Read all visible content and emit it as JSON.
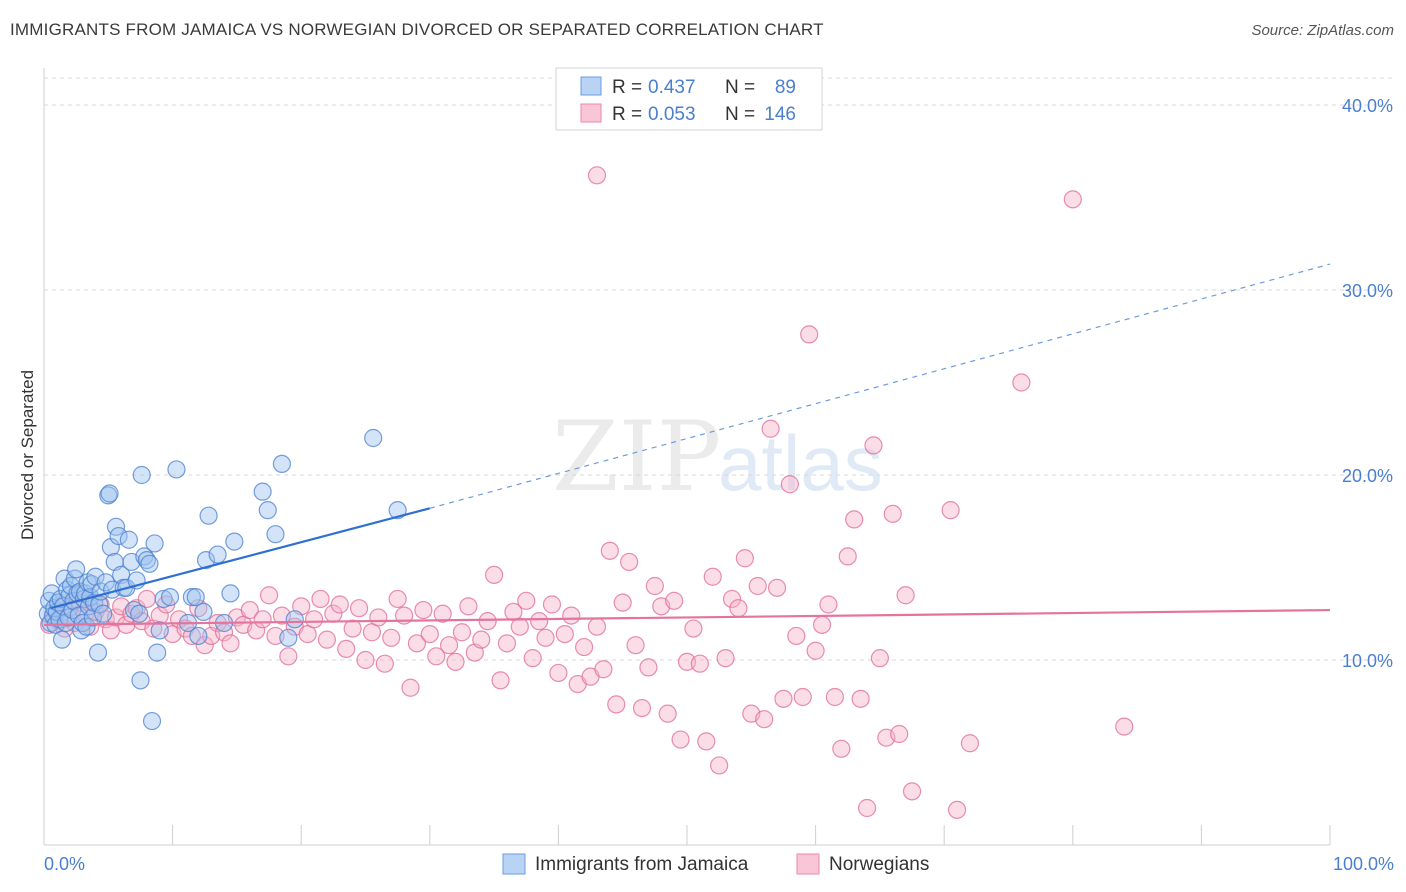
{
  "title": "IMMIGRANTS FROM JAMAICA VS NORWEGIAN DIVORCED OR SEPARATED CORRELATION CHART",
  "source": "Source: ZipAtlas.com",
  "watermark": {
    "zip": "ZIP",
    "atlas": "atlas"
  },
  "colors": {
    "blue": "#4a7fd0",
    "blue_fill": "#9ec3ef",
    "pink": "#e06a95",
    "pink_fill": "#f5b3c8",
    "grid": "#d8d8d8"
  },
  "legend": {
    "r_label": "R =",
    "n_label": "N =",
    "rows": [
      {
        "r": "0.437",
        "n": "89",
        "color": "blue"
      },
      {
        "r": "0.053",
        "n": "146",
        "color": "pink"
      }
    ]
  },
  "chart_data": {
    "type": "scatter",
    "ylabel": "Divorced or Separated",
    "xlabel": "",
    "xlim": [
      0,
      100
    ],
    "ylim": [
      0,
      42
    ],
    "x_tick_labels": [
      "0.0%",
      "100.0%"
    ],
    "y_ticks": [
      10,
      20,
      30,
      40
    ],
    "y_tick_labels": [
      "10.0%",
      "20.0%",
      "30.0%",
      "40.0%"
    ],
    "grid": "horizontal dashed",
    "legend_position": "top-center",
    "series": [
      {
        "name": "Immigrants from Jamaica",
        "color": "blue",
        "trend": {
          "x0": 0.5,
          "y0": 12.8,
          "x1": 30,
          "y1": 18.2,
          "dashed_to_x": 100,
          "dashed_to_y": 31.4
        },
        "points": [
          [
            0.3,
            12.5
          ],
          [
            0.4,
            13.2
          ],
          [
            0.5,
            12.0
          ],
          [
            0.6,
            13.6
          ],
          [
            0.7,
            12.4
          ],
          [
            0.8,
            12.8
          ],
          [
            0.9,
            11.9
          ],
          [
            1.0,
            12.6
          ],
          [
            1.1,
            13.1
          ],
          [
            1.2,
            12.2
          ],
          [
            1.3,
            13.3
          ],
          [
            1.4,
            11.1
          ],
          [
            1.5,
            12.9
          ],
          [
            1.6,
            14.4
          ],
          [
            1.7,
            12.0
          ],
          [
            1.8,
            13.8
          ],
          [
            1.9,
            12.3
          ],
          [
            2.0,
            13.5
          ],
          [
            2.1,
            14.0
          ],
          [
            2.2,
            12.7
          ],
          [
            2.3,
            13.2
          ],
          [
            2.4,
            14.4
          ],
          [
            2.5,
            14.9
          ],
          [
            2.6,
            13.6
          ],
          [
            2.7,
            12.4
          ],
          [
            2.8,
            13.7
          ],
          [
            2.9,
            11.6
          ],
          [
            3.0,
            12.0
          ],
          [
            3.1,
            13.3
          ],
          [
            3.2,
            13.6
          ],
          [
            3.3,
            11.8
          ],
          [
            3.4,
            14.2
          ],
          [
            3.5,
            12.9
          ],
          [
            3.6,
            13.4
          ],
          [
            3.7,
            14.1
          ],
          [
            3.8,
            12.3
          ],
          [
            3.9,
            13.1
          ],
          [
            4.0,
            14.5
          ],
          [
            4.2,
            10.4
          ],
          [
            4.3,
            13.0
          ],
          [
            4.4,
            13.7
          ],
          [
            4.6,
            12.5
          ],
          [
            4.8,
            14.2
          ],
          [
            5.0,
            18.9
          ],
          [
            5.1,
            19.0
          ],
          [
            5.2,
            16.1
          ],
          [
            5.3,
            13.8
          ],
          [
            5.5,
            15.3
          ],
          [
            5.6,
            17.2
          ],
          [
            5.8,
            16.7
          ],
          [
            6.0,
            14.6
          ],
          [
            6.2,
            13.9
          ],
          [
            6.4,
            13.9
          ],
          [
            6.6,
            16.5
          ],
          [
            6.8,
            15.3
          ],
          [
            7.0,
            12.7
          ],
          [
            7.2,
            14.3
          ],
          [
            7.4,
            12.5
          ],
          [
            7.5,
            8.9
          ],
          [
            7.6,
            20.0
          ],
          [
            7.8,
            15.6
          ],
          [
            8.0,
            15.4
          ],
          [
            8.2,
            15.2
          ],
          [
            8.4,
            6.7
          ],
          [
            8.6,
            16.3
          ],
          [
            8.8,
            10.4
          ],
          [
            9.0,
            11.6
          ],
          [
            9.3,
            13.3
          ],
          [
            9.8,
            13.4
          ],
          [
            10.3,
            20.3
          ],
          [
            11.2,
            12.0
          ],
          [
            11.5,
            13.4
          ],
          [
            11.8,
            13.4
          ],
          [
            12.0,
            11.3
          ],
          [
            12.4,
            12.6
          ],
          [
            12.6,
            15.4
          ],
          [
            12.8,
            17.8
          ],
          [
            13.5,
            15.7
          ],
          [
            14.0,
            12.0
          ],
          [
            14.5,
            13.6
          ],
          [
            14.8,
            16.4
          ],
          [
            17.0,
            19.1
          ],
          [
            17.4,
            18.1
          ],
          [
            18.0,
            16.8
          ],
          [
            18.5,
            20.6
          ],
          [
            19.0,
            11.2
          ],
          [
            25.6,
            22.0
          ],
          [
            27.5,
            18.1
          ],
          [
            19.5,
            12.2
          ]
        ]
      },
      {
        "name": "Norwegians",
        "color": "pink",
        "trend": {
          "x0": 0,
          "y0": 11.9,
          "x1": 100,
          "y1": 12.7
        },
        "points": [
          [
            0.4,
            11.9
          ],
          [
            0.8,
            12.4
          ],
          [
            1.2,
            12.1
          ],
          [
            1.6,
            11.7
          ],
          [
            2.0,
            12.8
          ],
          [
            2.4,
            12.0
          ],
          [
            2.8,
            13.1
          ],
          [
            3.2,
            12.5
          ],
          [
            3.6,
            11.8
          ],
          [
            4.0,
            12.6
          ],
          [
            4.4,
            13.0
          ],
          [
            4.8,
            12.2
          ],
          [
            5.2,
            11.6
          ],
          [
            5.6,
            12.3
          ],
          [
            6.0,
            12.9
          ],
          [
            6.4,
            11.9
          ],
          [
            6.8,
            12.5
          ],
          [
            7.2,
            12.8
          ],
          [
            7.6,
            12.1
          ],
          [
            8.0,
            13.3
          ],
          [
            8.5,
            11.7
          ],
          [
            9.0,
            12.4
          ],
          [
            9.5,
            13.0
          ],
          [
            10.0,
            11.4
          ],
          [
            10.5,
            12.2
          ],
          [
            11.0,
            11.7
          ],
          [
            11.5,
            11.3
          ],
          [
            12.0,
            12.8
          ],
          [
            12.5,
            10.8
          ],
          [
            13.0,
            11.3
          ],
          [
            13.5,
            12.0
          ],
          [
            14.0,
            11.5
          ],
          [
            14.5,
            10.9
          ],
          [
            15.0,
            12.3
          ],
          [
            15.5,
            11.9
          ],
          [
            16.0,
            12.7
          ],
          [
            16.5,
            11.6
          ],
          [
            17.0,
            12.2
          ],
          [
            17.5,
            13.5
          ],
          [
            18.0,
            11.3
          ],
          [
            18.5,
            12.4
          ],
          [
            19.0,
            10.2
          ],
          [
            19.5,
            11.8
          ],
          [
            20.0,
            12.9
          ],
          [
            20.5,
            11.4
          ],
          [
            21.0,
            12.2
          ],
          [
            21.5,
            13.3
          ],
          [
            22.0,
            11.1
          ],
          [
            22.5,
            12.5
          ],
          [
            23.0,
            13.0
          ],
          [
            23.5,
            10.6
          ],
          [
            24.0,
            11.7
          ],
          [
            24.5,
            12.8
          ],
          [
            25.0,
            10.0
          ],
          [
            25.5,
            11.5
          ],
          [
            26.0,
            12.3
          ],
          [
            26.5,
            9.8
          ],
          [
            27.0,
            11.2
          ],
          [
            27.5,
            13.3
          ],
          [
            28.0,
            12.4
          ],
          [
            28.5,
            8.5
          ],
          [
            29.0,
            10.9
          ],
          [
            29.5,
            12.7
          ],
          [
            30.0,
            11.4
          ],
          [
            30.5,
            10.2
          ],
          [
            31.0,
            12.5
          ],
          [
            31.5,
            10.8
          ],
          [
            32.0,
            9.9
          ],
          [
            32.5,
            11.5
          ],
          [
            33.0,
            12.9
          ],
          [
            33.5,
            10.4
          ],
          [
            34.0,
            11.1
          ],
          [
            34.5,
            12.1
          ],
          [
            35.0,
            14.6
          ],
          [
            35.5,
            8.9
          ],
          [
            36.0,
            10.9
          ],
          [
            36.5,
            12.6
          ],
          [
            37.0,
            11.8
          ],
          [
            37.5,
            13.2
          ],
          [
            38.0,
            10.1
          ],
          [
            38.5,
            12.1
          ],
          [
            39.0,
            11.2
          ],
          [
            39.5,
            13.0
          ],
          [
            40.0,
            9.3
          ],
          [
            40.5,
            11.4
          ],
          [
            41.0,
            12.4
          ],
          [
            41.5,
            8.7
          ],
          [
            42.0,
            10.7
          ],
          [
            42.5,
            9.1
          ],
          [
            43.0,
            11.8
          ],
          [
            43.5,
            9.5
          ],
          [
            44.0,
            15.9
          ],
          [
            44.5,
            7.6
          ],
          [
            45.0,
            13.1
          ],
          [
            45.5,
            15.3
          ],
          [
            46.0,
            10.8
          ],
          [
            46.5,
            7.4
          ],
          [
            47.0,
            9.6
          ],
          [
            47.5,
            14.0
          ],
          [
            48.0,
            12.9
          ],
          [
            48.5,
            7.1
          ],
          [
            49.0,
            13.2
          ],
          [
            49.5,
            5.7
          ],
          [
            50.0,
            9.9
          ],
          [
            50.5,
            11.7
          ],
          [
            51.0,
            9.8
          ],
          [
            51.5,
            5.6
          ],
          [
            52.0,
            14.5
          ],
          [
            52.5,
            4.3
          ],
          [
            53.0,
            10.1
          ],
          [
            53.5,
            13.3
          ],
          [
            54.0,
            12.8
          ],
          [
            54.5,
            15.5
          ],
          [
            55.0,
            7.1
          ],
          [
            55.5,
            14.0
          ],
          [
            56.0,
            6.8
          ],
          [
            56.5,
            22.5
          ],
          [
            57.0,
            13.9
          ],
          [
            57.5,
            7.9
          ],
          [
            58.0,
            19.5
          ],
          [
            58.5,
            11.3
          ],
          [
            59.0,
            8.0
          ],
          [
            59.5,
            27.6
          ],
          [
            60.0,
            10.5
          ],
          [
            60.5,
            11.9
          ],
          [
            61.0,
            13.0
          ],
          [
            61.5,
            8.0
          ],
          [
            62.0,
            5.2
          ],
          [
            62.5,
            15.6
          ],
          [
            63.0,
            17.6
          ],
          [
            63.5,
            7.9
          ],
          [
            64.0,
            2.0
          ],
          [
            64.5,
            21.6
          ],
          [
            65.0,
            10.1
          ],
          [
            65.5,
            5.8
          ],
          [
            66.0,
            17.9
          ],
          [
            66.5,
            6.0
          ],
          [
            67.0,
            13.5
          ],
          [
            67.5,
            2.9
          ],
          [
            70.5,
            18.1
          ],
          [
            71.0,
            1.9
          ],
          [
            72.0,
            5.5
          ],
          [
            43.0,
            36.2
          ],
          [
            80.0,
            34.9
          ],
          [
            76.0,
            25.0
          ],
          [
            84.0,
            6.4
          ]
        ]
      }
    ]
  }
}
